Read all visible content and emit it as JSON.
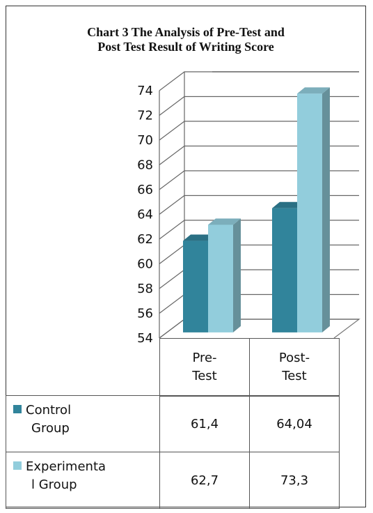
{
  "chart_data": {
    "type": "bar",
    "title": "Chart 3 The Analysis of Pre-Test and Post Test Result of Writing Score",
    "title_lines": [
      "Chart 3 The Analysis of Pre-Test and",
      "Post Test Result of Writing Score"
    ],
    "categories": [
      "Pre-Test",
      "Post-Test"
    ],
    "category_lines": [
      [
        "Pre-",
        "Test"
      ],
      [
        "Post-",
        "Test"
      ]
    ],
    "series": [
      {
        "name": "Control Group",
        "name_lines": [
          "Control",
          "Group"
        ],
        "values": [
          61.4,
          64.04
        ],
        "labels": [
          "61,4",
          "64,04"
        ],
        "color": "#31849b"
      },
      {
        "name": "Experimental Group",
        "name_lines": [
          "Experimenta",
          "l Group"
        ],
        "values": [
          62.7,
          73.3
        ],
        "labels": [
          "62,7",
          "73,3"
        ],
        "color": "#92cddc"
      }
    ],
    "ylim": [
      54,
      74
    ],
    "yticks": [
      "54",
      "56",
      "58",
      "60",
      "62",
      "64",
      "66",
      "68",
      "70",
      "72",
      "74"
    ],
    "grid": true,
    "legend": "data table"
  }
}
